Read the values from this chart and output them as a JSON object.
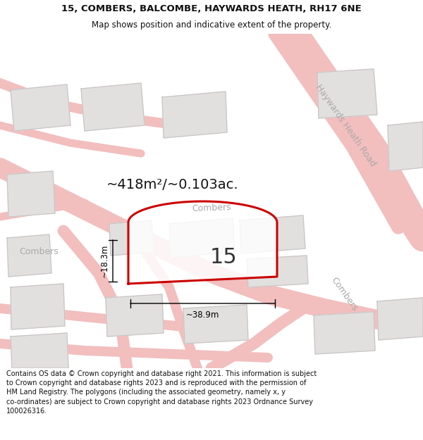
{
  "title": "15, COMBERS, BALCOMBE, HAYWARDS HEATH, RH17 6NE",
  "subtitle": "Map shows position and indicative extent of the property.",
  "footer": "Contains OS data © Crown copyright and database right 2021. This information is subject to Crown copyright and database rights 2023 and is reproduced with the permission of HM Land Registry. The polygons (including the associated geometry, namely x, y co-ordinates) are subject to Crown copyright and database rights 2023 Ordnance Survey 100026316.",
  "area_text": "~418m²/~0.103ac.",
  "number_label": "15",
  "dim_height": "~18.3m",
  "dim_width": "~38.9m",
  "road_label_haywards": "Haywards Heath Road",
  "road_label_combers_top": "Combers",
  "road_label_combers_left": "Combers",
  "road_label_combers_right": "Combers",
  "map_bg": "#f7f5f5",
  "plot_color": "#e2dfdf",
  "road_color": "#f2bebe",
  "highlight_color": "#cc0000",
  "title_color": "#111111",
  "footer_color": "#111111",
  "label_color": "#aaaaaa",
  "title_fontsize": 9.5,
  "subtitle_fontsize": 8.5,
  "footer_fontsize": 7.0,
  "area_fontsize": 14,
  "number_fontsize": 22,
  "dim_fontsize": 8.5,
  "road_label_fontsize": 9
}
